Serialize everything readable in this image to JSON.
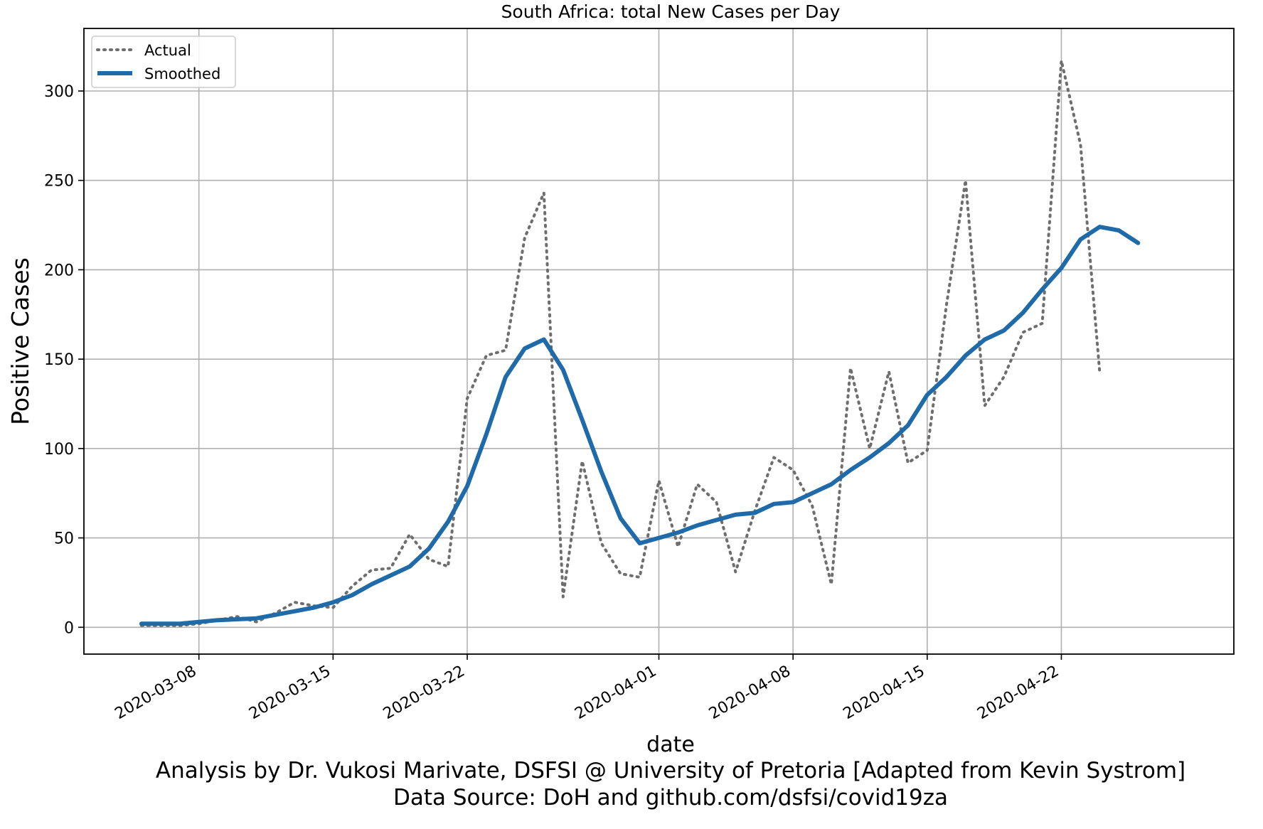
{
  "chart_data": {
    "type": "line",
    "title": "South Africa: total New Cases per Day",
    "xlabel": "date",
    "ylabel": "Positive Cases",
    "caption_lines": [
      "Analysis by Dr. Vukosi Marivate, DSFSI @ University of Pretoria [Adapted from Kevin Systrom]",
      "Data Source: DoH and github.com/dsfsi/covid19za"
    ],
    "x_ticks": [
      "2020-03-08",
      "2020-03-15",
      "2020-03-22",
      "2020-04-01",
      "2020-04-08",
      "2020-04-15",
      "2020-04-22"
    ],
    "y_ticks": [
      0,
      50,
      100,
      150,
      200,
      250,
      300
    ],
    "xlim": [
      "2020-03-02",
      "2020-05-01"
    ],
    "ylim": [
      -15,
      335
    ],
    "grid": true,
    "legend_position": "upper-left",
    "series": [
      {
        "name": "Actual",
        "style": "dotted",
        "color": "#6e6e6e",
        "x": [
          "2020-03-05",
          "2020-03-06",
          "2020-03-07",
          "2020-03-08",
          "2020-03-09",
          "2020-03-10",
          "2020-03-11",
          "2020-03-12",
          "2020-03-13",
          "2020-03-14",
          "2020-03-15",
          "2020-03-16",
          "2020-03-17",
          "2020-03-18",
          "2020-03-19",
          "2020-03-20",
          "2020-03-21",
          "2020-03-22",
          "2020-03-23",
          "2020-03-24",
          "2020-03-25",
          "2020-03-26",
          "2020-03-27",
          "2020-03-28",
          "2020-03-29",
          "2020-03-30",
          "2020-03-31",
          "2020-04-01",
          "2020-04-02",
          "2020-04-03",
          "2020-04-04",
          "2020-04-05",
          "2020-04-06",
          "2020-04-07",
          "2020-04-08",
          "2020-04-09",
          "2020-04-10",
          "2020-04-11",
          "2020-04-12",
          "2020-04-13",
          "2020-04-14",
          "2020-04-15",
          "2020-04-16",
          "2020-04-17",
          "2020-04-18",
          "2020-04-19",
          "2020-04-20",
          "2020-04-21",
          "2020-04-22",
          "2020-04-23",
          "2020-04-24",
          "2020-04-25"
        ],
        "values": [
          1,
          1,
          1,
          2,
          4,
          6,
          3,
          8,
          14,
          12,
          11,
          23,
          32,
          33,
          52,
          38,
          34,
          128,
          152,
          155,
          218,
          243,
          17,
          93,
          47,
          30,
          28,
          82,
          45,
          80,
          70,
          31,
          65,
          95,
          88,
          68,
          24,
          145,
          100,
          143,
          92,
          99,
          180,
          250,
          124,
          140,
          165,
          170,
          317,
          270,
          143,
          null
        ]
      },
      {
        "name": "Smoothed",
        "style": "solid",
        "color": "#1f6aa8",
        "x": [
          "2020-03-05",
          "2020-03-06",
          "2020-03-07",
          "2020-03-08",
          "2020-03-09",
          "2020-03-10",
          "2020-03-11",
          "2020-03-12",
          "2020-03-13",
          "2020-03-14",
          "2020-03-15",
          "2020-03-16",
          "2020-03-17",
          "2020-03-18",
          "2020-03-19",
          "2020-03-20",
          "2020-03-21",
          "2020-03-22",
          "2020-03-23",
          "2020-03-24",
          "2020-03-25",
          "2020-03-26",
          "2020-03-27",
          "2020-03-28",
          "2020-03-29",
          "2020-03-30",
          "2020-03-31",
          "2020-04-01",
          "2020-04-02",
          "2020-04-03",
          "2020-04-04",
          "2020-04-05",
          "2020-04-06",
          "2020-04-07",
          "2020-04-08",
          "2020-04-09",
          "2020-04-10",
          "2020-04-11",
          "2020-04-12",
          "2020-04-13",
          "2020-04-14",
          "2020-04-15",
          "2020-04-16",
          "2020-04-17",
          "2020-04-18",
          "2020-04-19",
          "2020-04-20",
          "2020-04-21",
          "2020-04-22",
          "2020-04-23",
          "2020-04-24",
          "2020-04-25",
          "2020-04-26"
        ],
        "values": [
          2,
          2,
          2,
          3,
          4,
          4.5,
          5,
          7,
          9,
          11,
          14,
          18,
          24,
          29,
          34,
          44,
          59,
          79,
          108,
          140,
          156,
          161,
          144,
          116,
          87,
          61,
          47,
          50,
          53,
          57,
          60,
          63,
          64,
          69,
          70,
          75,
          80,
          88,
          95,
          103,
          113,
          130,
          140,
          152,
          161,
          166,
          176,
          189,
          201,
          217,
          224,
          222,
          215
        ]
      }
    ]
  }
}
